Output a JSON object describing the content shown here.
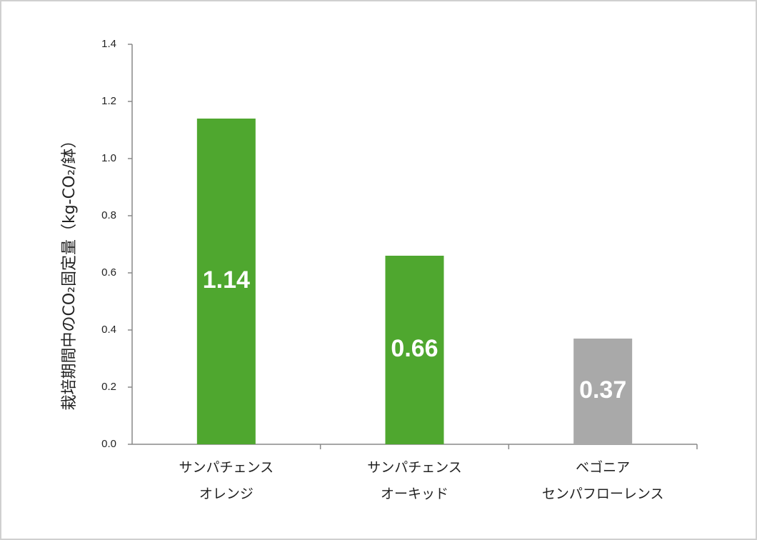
{
  "chart_data": {
    "type": "bar",
    "y_axis_label": "栽培期間中のCO₂固定量（kg-CO₂/鉢）",
    "categories": [
      [
        "サンパチェンス",
        "オレンジ"
      ],
      [
        "サンパチェンス",
        "オーキッド"
      ],
      [
        "ベゴニア",
        "センパフローレンス"
      ]
    ],
    "values": [
      1.14,
      0.66,
      0.37
    ],
    "colors": [
      "#4fa72f",
      "#4fa72f",
      "#a9a9a9"
    ],
    "ylim": [
      0,
      1.4
    ],
    "yticks": [
      {
        "value": 0,
        "label": "0.0"
      },
      0.2,
      0.4,
      0.6,
      0.8,
      {
        "value": 1,
        "label": "1.0"
      },
      1.2,
      1.4
    ],
    "grid": false
  }
}
